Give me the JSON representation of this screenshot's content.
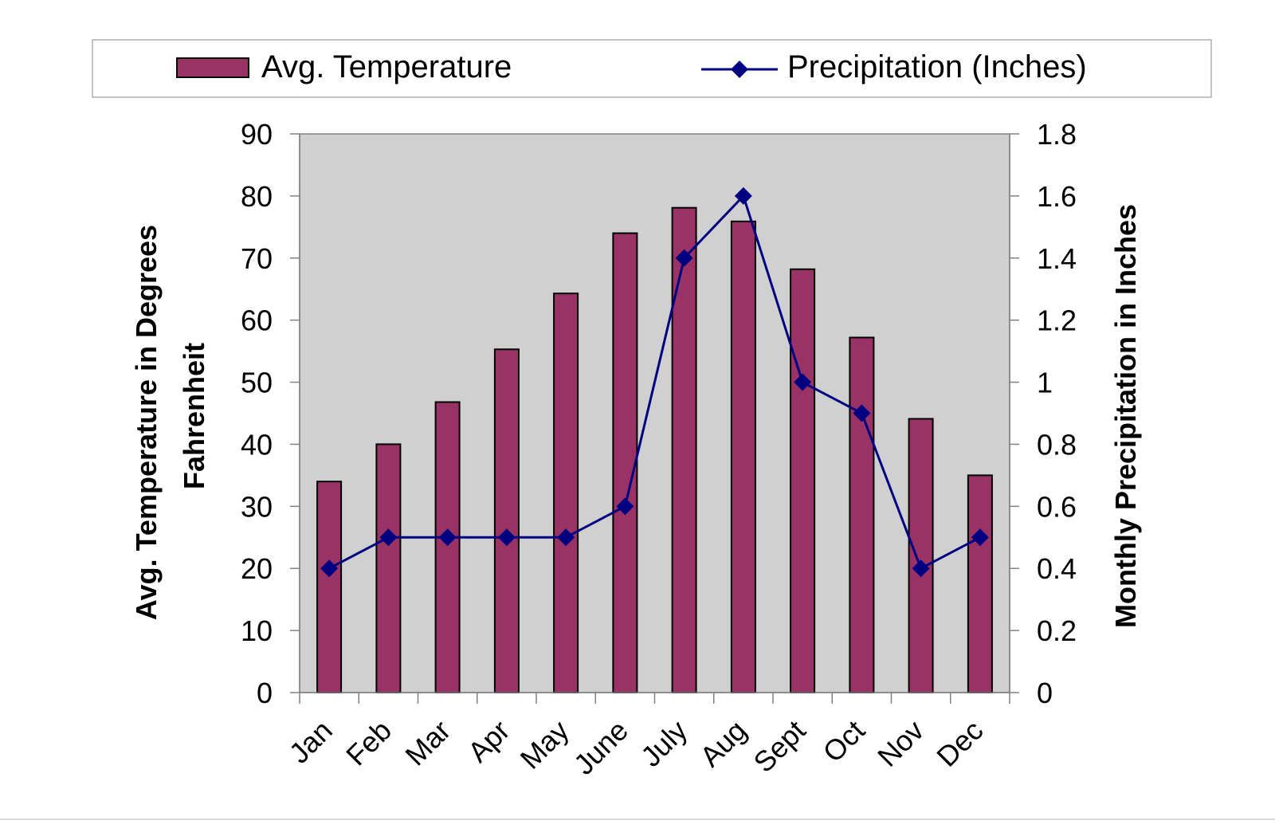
{
  "chart_data": {
    "type": "bar",
    "categories": [
      "Jan",
      "Feb",
      "Mar",
      "Apr",
      "May",
      "June",
      "July",
      "Aug",
      "Sept",
      "Oct",
      "Nov",
      "Dec"
    ],
    "series": [
      {
        "name": "Avg. Temperature",
        "type": "bar",
        "axis": "left",
        "color": "#993366",
        "values": [
          34,
          40,
          46.8,
          55.3,
          64.3,
          74,
          78.1,
          75.9,
          68.2,
          57.2,
          44.1,
          35
        ]
      },
      {
        "name": "Precipitation (Inches)",
        "type": "line",
        "axis": "right",
        "color": "#000080",
        "marker": "diamond",
        "values": [
          0.4,
          0.5,
          0.5,
          0.5,
          0.5,
          0.6,
          1.4,
          1.6,
          1.0,
          0.9,
          0.4,
          0.5
        ]
      }
    ],
    "ylabel": "Avg. Temperature in Degrees Fahrenheit",
    "ylabel_lines": [
      "Avg. Temperature in Degrees",
      "Fahrenheit"
    ],
    "ylim": [
      0,
      90
    ],
    "yticks": [
      "0",
      "10",
      "20",
      "30",
      "40",
      "50",
      "60",
      "70",
      "80",
      "90"
    ],
    "y2label": "Monthly Precipitation in Inches",
    "y2lim": [
      0,
      1.8
    ],
    "y2ticks": [
      "0",
      "0.2",
      "0.4",
      "0.6",
      "0.8",
      "1",
      "1.2",
      "1.4",
      "1.6",
      "1.8"
    ],
    "grid": false,
    "plot_background": "#d0d0d0",
    "legend_position": "top"
  }
}
